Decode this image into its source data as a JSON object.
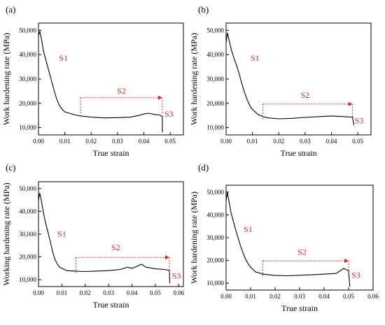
{
  "colors": {
    "axis": "#000000",
    "curve": "#000000",
    "accent": "#d62728"
  },
  "chart_data": [
    {
      "type": "line",
      "panel": "(a)",
      "title": "",
      "xlabel": "True strain",
      "ylabel": "Work hardening rate (MPa)",
      "xlim": [
        0,
        0.055
      ],
      "ylim": [
        7000,
        53000
      ],
      "xticks": [
        0.0,
        0.01,
        0.02,
        0.03,
        0.04,
        0.05
      ],
      "xtick_labels": [
        "0.00",
        "0.01",
        "0.02",
        "0.03",
        "0.04",
        "0.05"
      ],
      "yticks": [
        10000,
        20000,
        30000,
        40000,
        50000
      ],
      "ytick_labels": [
        "10,000",
        "20,000",
        "30,000",
        "40,000",
        "50,000"
      ],
      "grid": false,
      "series": [
        {
          "x": [
            0.0,
            0.0005,
            0.001,
            0.002,
            0.003,
            0.004,
            0.005,
            0.006,
            0.007,
            0.008,
            0.009,
            0.01,
            0.012,
            0.014,
            0.016,
            0.02,
            0.025,
            0.03,
            0.035,
            0.038,
            0.04,
            0.042,
            0.044,
            0.046,
            0.047,
            0.047
          ],
          "y": [
            48000,
            49500,
            47000,
            41000,
            37000,
            33000,
            29000,
            25000,
            21500,
            19000,
            17500,
            16500,
            15800,
            15200,
            14800,
            14300,
            14000,
            14100,
            14300,
            15000,
            15600,
            15900,
            15400,
            15200,
            14600,
            8000
          ]
        }
      ],
      "annotations": [
        {
          "text": "S1",
          "x": 0.0095,
          "y": 37500
        },
        {
          "text": "S2",
          "x": 0.0315,
          "y": 24000
        },
        {
          "text": "S3",
          "x": 0.0495,
          "y": 14500
        }
      ],
      "stage_arrow": {
        "x_start": 0.016,
        "x_end": 0.047,
        "y": 22300
      }
    },
    {
      "type": "line",
      "panel": "(b)",
      "title": "",
      "xlabel": "True strain",
      "ylabel": "Work hardening rate (MPa)",
      "xlim": [
        0,
        0.055
      ],
      "ylim": [
        7000,
        53000
      ],
      "xticks": [
        0.0,
        0.01,
        0.02,
        0.03,
        0.04,
        0.05
      ],
      "xtick_labels": [
        "0.00",
        "0.01",
        "0.02",
        "0.03",
        "0.04",
        "0.05"
      ],
      "yticks": [
        10000,
        20000,
        30000,
        40000,
        50000
      ],
      "ytick_labels": [
        "10,000",
        "20,000",
        "30,000",
        "40,000",
        "50,000"
      ],
      "grid": false,
      "series": [
        {
          "x": [
            0.0,
            0.0005,
            0.001,
            0.002,
            0.003,
            0.004,
            0.005,
            0.006,
            0.007,
            0.008,
            0.009,
            0.01,
            0.012,
            0.014,
            0.016,
            0.02,
            0.025,
            0.03,
            0.035,
            0.04,
            0.045,
            0.048,
            0.0485
          ],
          "y": [
            45000,
            49000,
            46500,
            42000,
            38500,
            35500,
            32000,
            28000,
            24500,
            21500,
            19000,
            17500,
            15500,
            14500,
            14000,
            13600,
            13800,
            14200,
            14500,
            14800,
            14500,
            14300,
            11000
          ]
        }
      ],
      "annotations": [
        {
          "text": "S1",
          "x": 0.011,
          "y": 37500
        },
        {
          "text": "S2",
          "x": 0.03,
          "y": 22300
        },
        {
          "text": "S3",
          "x": 0.0505,
          "y": 11800
        }
      ],
      "stage_arrow": {
        "x_start": 0.014,
        "x_end": 0.048,
        "y": 19700
      }
    },
    {
      "type": "line",
      "panel": "(c)",
      "title": "",
      "xlabel": "True strain",
      "ylabel": "Working hardening rate (MPa)",
      "xlim": [
        0,
        0.062
      ],
      "ylim": [
        7000,
        53000
      ],
      "xticks": [
        0.0,
        0.01,
        0.02,
        0.03,
        0.04,
        0.05,
        0.06
      ],
      "xtick_labels": [
        "0.00",
        "0.01",
        "0.02",
        "0.03",
        "0.04",
        "0.05",
        "0.06"
      ],
      "yticks": [
        10000,
        20000,
        30000,
        40000,
        50000
      ],
      "ytick_labels": [
        "10,000",
        "20,000",
        "30,000",
        "40,000",
        "50,000"
      ],
      "grid": false,
      "series": [
        {
          "x": [
            0.0,
            0.0005,
            0.001,
            0.002,
            0.003,
            0.004,
            0.005,
            0.006,
            0.007,
            0.008,
            0.009,
            0.01,
            0.012,
            0.015,
            0.02,
            0.025,
            0.03,
            0.035,
            0.038,
            0.04,
            0.042,
            0.044,
            0.046,
            0.05,
            0.054,
            0.056,
            0.0562
          ],
          "y": [
            45000,
            48000,
            46000,
            40000,
            35000,
            31000,
            27000,
            22500,
            19000,
            17000,
            15500,
            15000,
            14000,
            13800,
            13600,
            13800,
            14000,
            14500,
            15500,
            15000,
            15800,
            16800,
            15500,
            14800,
            14500,
            14000,
            8500
          ]
        }
      ],
      "annotations": [
        {
          "text": "S1",
          "x": 0.01,
          "y": 29000
        },
        {
          "text": "S2",
          "x": 0.033,
          "y": 23000
        },
        {
          "text": "S3",
          "x": 0.059,
          "y": 10500
        }
      ],
      "stage_arrow": {
        "x_start": 0.016,
        "x_end": 0.056,
        "y": 19800
      }
    },
    {
      "type": "line",
      "panel": "(d)",
      "title": "",
      "xlabel": "True strain",
      "ylabel": "Work hardening rate (MPa)",
      "xlim": [
        0,
        0.06
      ],
      "ylim": [
        7000,
        53000
      ],
      "xticks": [
        0.0,
        0.01,
        0.02,
        0.03,
        0.04,
        0.05,
        0.06
      ],
      "xtick_labels": [
        "0.00",
        "0.01",
        "0.02",
        "0.03",
        "0.04",
        "0.05",
        "0.06"
      ],
      "yticks": [
        10000,
        20000,
        30000,
        40000,
        50000
      ],
      "ytick_labels": [
        "10,000",
        "20,000",
        "30,000",
        "40,000",
        "50,000"
      ],
      "grid": false,
      "series": [
        {
          "x": [
            0.0,
            0.0005,
            0.001,
            0.002,
            0.003,
            0.004,
            0.005,
            0.006,
            0.007,
            0.008,
            0.009,
            0.01,
            0.012,
            0.015,
            0.02,
            0.025,
            0.03,
            0.035,
            0.04,
            0.045,
            0.048,
            0.05,
            0.0505
          ],
          "y": [
            46000,
            50000,
            47000,
            41000,
            37000,
            33000,
            29500,
            26000,
            23000,
            20500,
            18500,
            17000,
            15000,
            14000,
            13400,
            13300,
            13500,
            13700,
            14000,
            14300,
            16500,
            15500,
            8500
          ]
        }
      ],
      "annotations": [
        {
          "text": "S1",
          "x": 0.009,
          "y": 32500
        },
        {
          "text": "S2",
          "x": 0.031,
          "y": 22500
        },
        {
          "text": "S3",
          "x": 0.053,
          "y": 12300
        }
      ],
      "stage_arrow": {
        "x_start": 0.015,
        "x_end": 0.05,
        "y": 19800
      }
    }
  ]
}
